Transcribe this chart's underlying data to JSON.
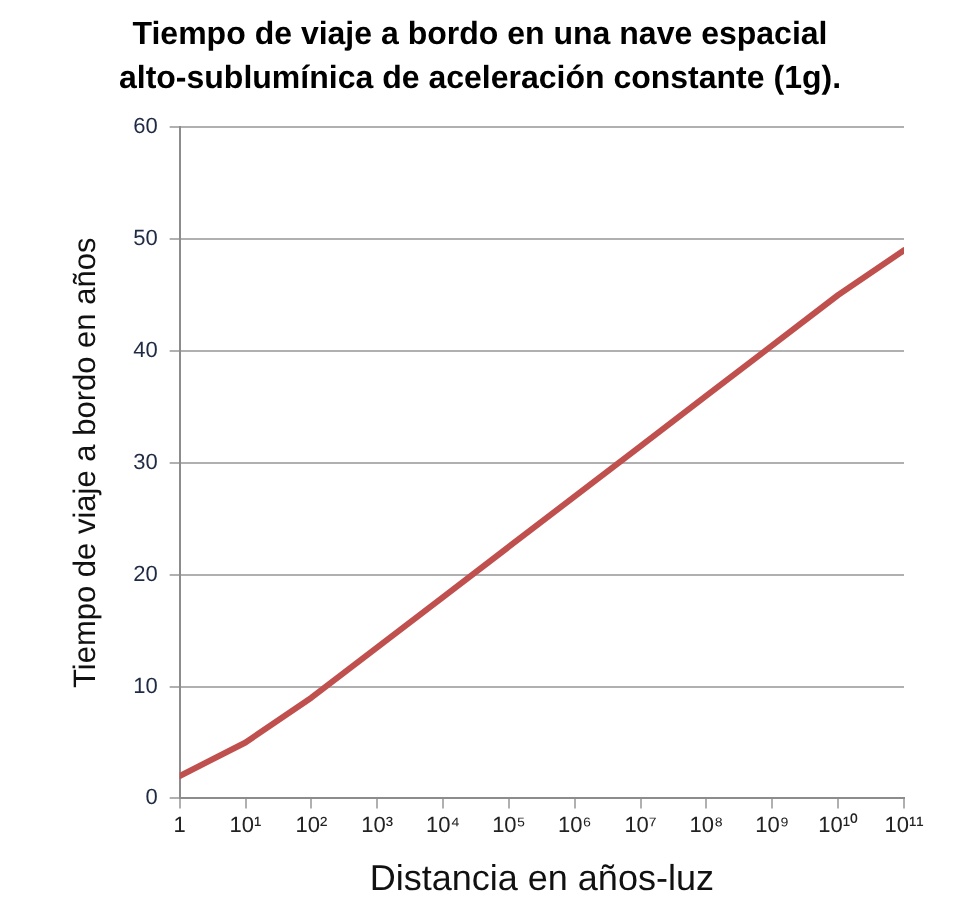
{
  "chart_data": {
    "type": "line",
    "title": "Tiempo de viaje a bordo en una nave espacial alto-sublumínica de aceleración constante (1g).",
    "xlabel": "Distancia en años-luz",
    "ylabel": "Tiempo de viaje a bordo en años",
    "x": [
      1,
      10,
      100,
      1000,
      10000,
      100000,
      1000000,
      10000000,
      100000000,
      1000000000,
      10000000000,
      100000000000
    ],
    "series": [
      {
        "color": "#c0504d",
        "values": [
          2,
          5,
          9,
          13.5,
          18,
          22.5,
          27,
          31.5,
          36,
          40.5,
          45,
          49
        ]
      }
    ],
    "log": "x",
    "xlim": [
      1,
      100000000000
    ],
    "xticks": [
      1,
      {
        "value": 10,
        "label": "10¹"
      },
      {
        "value": 100,
        "label": "10²"
      },
      {
        "value": 1000,
        "label": "10³"
      },
      {
        "value": 10000,
        "label": "10⁴"
      },
      {
        "value": 100000,
        "label": "10⁵"
      },
      {
        "value": 1000000,
        "label": "10⁶"
      },
      {
        "value": 10000000,
        "label": "10⁷"
      },
      {
        "value": 100000000,
        "label": "10⁸"
      },
      {
        "value": 1000000000,
        "label": "10⁹"
      },
      {
        "value": 10000000000,
        "label": "10¹⁰"
      },
      {
        "value": 100000000000,
        "label": "10¹¹"
      }
    ],
    "ylim": [
      0,
      60
    ],
    "yticks": [
      0,
      10,
      20,
      30,
      40,
      50,
      60
    ],
    "grid": "y",
    "legend": false,
    "marker": "none",
    "line_style": "solid"
  }
}
